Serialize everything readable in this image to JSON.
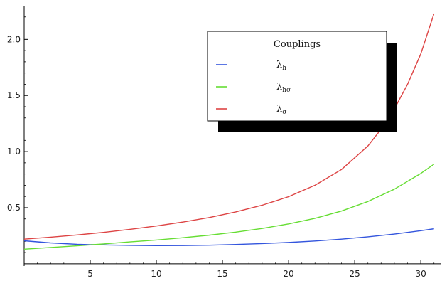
{
  "chart_data": {
    "type": "line",
    "title": "",
    "xlabel": "",
    "ylabel": "",
    "xlim": [
      0,
      31.5
    ],
    "ylim": [
      -0.02,
      2.3
    ],
    "x_ticks": [
      5,
      10,
      15,
      20,
      25,
      30
    ],
    "y_ticks": [
      0.5,
      1.0,
      1.5,
      2.0
    ],
    "x_tick_labels": [
      "5",
      "10",
      "15",
      "20",
      "25",
      "30"
    ],
    "y_tick_labels": [
      "0.5",
      "1.0",
      "1.5",
      "2.0"
    ],
    "grid": false,
    "legend": {
      "title": "Couplings",
      "placement": "top-right",
      "shadow": true,
      "entries": [
        {
          "symbol": "λ",
          "subscript": "h"
        },
        {
          "symbol": "λ",
          "subscript": "hσ"
        },
        {
          "symbol": "λ",
          "subscript": "σ"
        }
      ]
    },
    "series": [
      {
        "name": "λh",
        "color": "#3355dd",
        "x": [
          0,
          2,
          4,
          6,
          8,
          10,
          12,
          14,
          16,
          18,
          20,
          22,
          24,
          26,
          28,
          30,
          31
        ],
        "y": [
          0.205,
          0.186,
          0.174,
          0.168,
          0.164,
          0.162,
          0.163,
          0.166,
          0.172,
          0.18,
          0.19,
          0.203,
          0.22,
          0.24,
          0.265,
          0.295,
          0.312
        ]
      },
      {
        "name": "λhσ",
        "color": "#66dd33",
        "x": [
          0,
          2,
          4,
          6,
          8,
          10,
          12,
          14,
          16,
          18,
          20,
          22,
          24,
          26,
          28,
          30,
          31
        ],
        "y": [
          0.13,
          0.145,
          0.16,
          0.177,
          0.195,
          0.212,
          0.232,
          0.255,
          0.282,
          0.315,
          0.355,
          0.405,
          0.47,
          0.555,
          0.665,
          0.805,
          0.888
        ]
      },
      {
        "name": "λσ",
        "color": "#dd4444",
        "x": [
          0,
          2,
          4,
          6,
          8,
          10,
          12,
          14,
          16,
          18,
          20,
          22,
          24,
          26,
          27,
          28,
          29,
          30,
          31
        ],
        "y": [
          0.22,
          0.237,
          0.257,
          0.28,
          0.307,
          0.337,
          0.372,
          0.412,
          0.462,
          0.522,
          0.598,
          0.7,
          0.84,
          1.05,
          1.2,
          1.38,
          1.6,
          1.87,
          2.23
        ]
      }
    ]
  }
}
